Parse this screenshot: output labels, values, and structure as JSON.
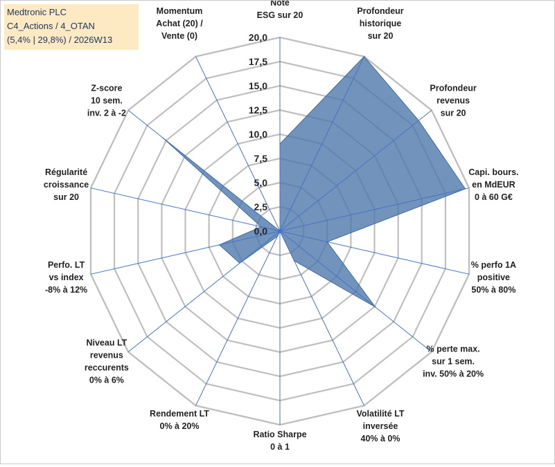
{
  "title_box": {
    "line1": "Medtronic PLC",
    "line2": "C4_Actions / 4_OTAN",
    "line3": "(5,4% | 29,8%) / 2026W13"
  },
  "chart_data": {
    "type": "radar",
    "rmin": 0,
    "rmax": 20,
    "tick_values": [
      0,
      2.5,
      5,
      7.5,
      10,
      12.5,
      15,
      17.5,
      20
    ],
    "tick_labels": [
      "0,0",
      "2,5",
      "5,0",
      "7,5",
      "10,0",
      "12,5",
      "15,0",
      "17,5",
      "20,0"
    ],
    "axes": [
      {
        "label": [
          "Note",
          "ESG sur 20"
        ],
        "value": 9.0
      },
      {
        "label": [
          "Profondeur",
          "historique",
          "sur 20"
        ],
        "value": 20.0
      },
      {
        "label": [
          "Profondeur",
          "revenus",
          "sur 20"
        ],
        "value": 18.3
      },
      {
        "label": [
          "Capi. bours.",
          "en MdEUR",
          "0 à 60 G€"
        ],
        "value": 19.6
      },
      {
        "label": [
          "% perfo 1A",
          "positive",
          "50% à 80%"
        ],
        "value": 5.0
      },
      {
        "label": [
          "% perte max.",
          "sur 1 sem.",
          "inv. 50% à 20%"
        ],
        "value": 12.6
      },
      {
        "label": [
          "Volatilité LT",
          "inversée",
          "40% à 0%"
        ],
        "value": 3.4
      },
      {
        "label": [
          "Ratio Sharpe",
          "0 à 1"
        ],
        "value": 0.0
      },
      {
        "label": [
          "Rendement LT",
          "0% à 20%"
        ],
        "value": 0.6
      },
      {
        "label": [
          "Niveau LT",
          "revenus",
          "reccurents",
          "0% à 6%"
        ],
        "value": 5.3
      },
      {
        "label": [
          "Perfo. LT",
          "vs index",
          "-8% à 12%"
        ],
        "value": 6.4
      },
      {
        "label": [
          "Régularité",
          "croissance",
          "sur 20"
        ],
        "value": 2.0
      },
      {
        "label": [
          "Z-score",
          "10 sem.",
          "inv. 2 à -2"
        ],
        "value": 15.4
      },
      {
        "label": [
          "Momentum",
          "Achat (20) /",
          "Vente (0)"
        ],
        "value": 0.0
      }
    ],
    "series_color": "#4f79ab",
    "grid_color": "#bfbfbf",
    "spoke_color": "#4472c4"
  }
}
